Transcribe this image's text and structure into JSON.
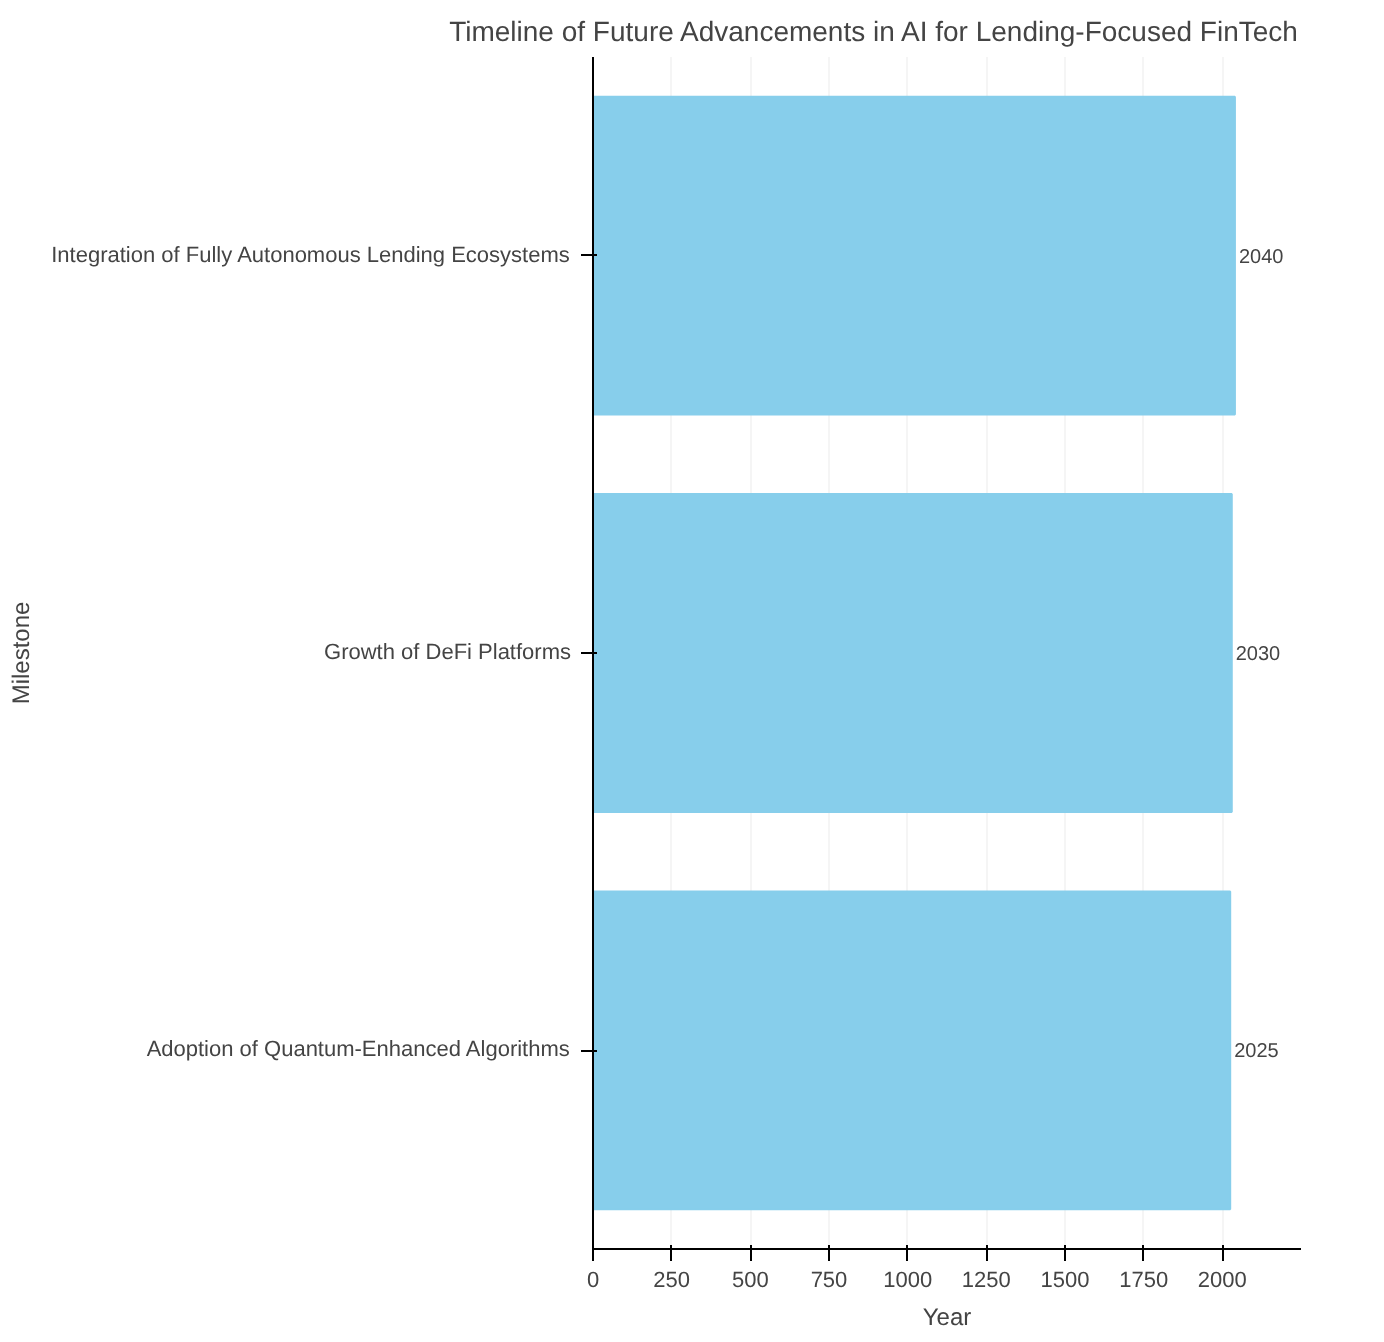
{
  "chart_data": {
    "type": "bar",
    "orientation": "horizontal",
    "title": "Timeline of Future Advancements in AI for Lending-Focused FinTech",
    "xlabel": "Year",
    "ylabel": "Milestone",
    "categories": [
      "Integration of Fully Autonomous Lending Ecosystems",
      "Growth of DeFi Platforms",
      "Adoption of Quantum-Enhanced Algorithms"
    ],
    "values": [
      2040,
      2030,
      2025
    ],
    "color": "#87ceeb",
    "data_labels": true,
    "xlim": [
      0,
      2250
    ],
    "xticks": [
      0,
      250,
      500,
      750,
      1000,
      1250,
      1500,
      1750,
      2000
    ],
    "grid": "x"
  }
}
